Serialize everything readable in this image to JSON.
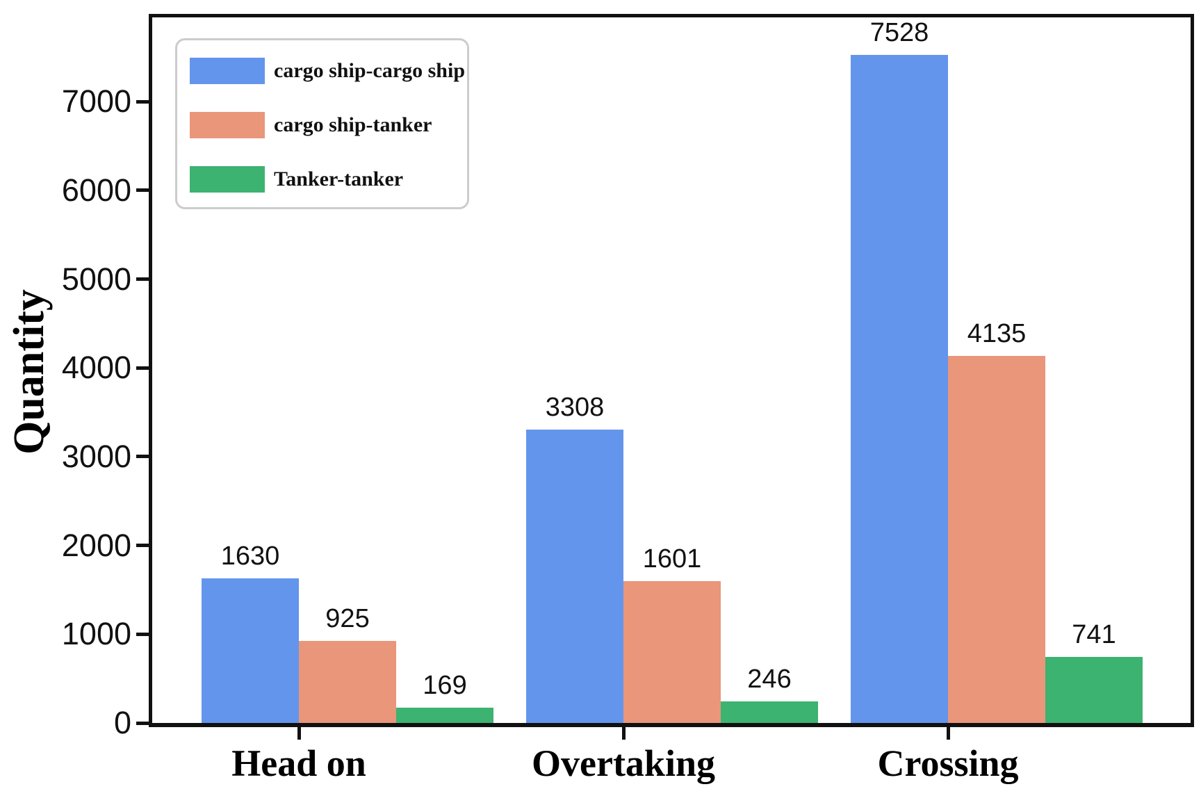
{
  "chart_data": {
    "type": "bar",
    "title": "",
    "categories": [
      "Head on",
      "Overtaking",
      "Crossing"
    ],
    "series": [
      {
        "name": "cargo ship-cargo ship",
        "color": "#6495ED",
        "values": [
          1630,
          3308,
          7528
        ]
      },
      {
        "name": "cargo ship-tanker",
        "color": "#E9967A",
        "values": [
          925,
          1601,
          4135
        ]
      },
      {
        "name": "Tanker-tanker",
        "color": "#3CB371",
        "values": [
          169,
          246,
          741
        ]
      }
    ],
    "xlabel": "",
    "ylabel": "Quantity",
    "ylim": [
      0,
      7950
    ],
    "yticks": [
      0,
      1000,
      2000,
      3000,
      4000,
      5000,
      6000,
      7000
    ],
    "bar_value_labels": true,
    "legend_position": "upper-left",
    "grid": false,
    "colors": {
      "axis": "#111111",
      "text": "#000000",
      "legend_border": "#cccccc",
      "background": "#ffffff"
    }
  }
}
